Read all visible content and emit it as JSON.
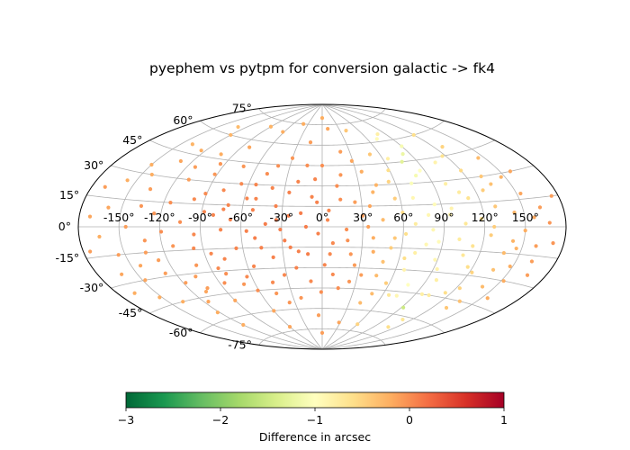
{
  "chart_data": {
    "type": "scatter",
    "projection": "aitoff",
    "title": "pyephem vs pytpm for conversion galactic -> fk4",
    "x_tick_labels": [
      "-150°",
      "-120°",
      "-90°",
      "-60°",
      "-30°",
      "0°",
      "30°",
      "60°",
      "90°",
      "120°",
      "150°"
    ],
    "x_ticks": [
      -150,
      -120,
      -90,
      -60,
      -30,
      0,
      30,
      60,
      90,
      120,
      150
    ],
    "y_tick_labels": [
      "-75°",
      "-60°",
      "-45°",
      "-30°",
      "-15°",
      "0°",
      "15°",
      "30°",
      "45°",
      "60°",
      "75°"
    ],
    "y_ticks": [
      -75,
      -60,
      -45,
      -30,
      -15,
      0,
      15,
      30,
      45,
      60,
      75
    ],
    "xlim": [
      -180,
      180
    ],
    "ylim": [
      -90,
      90
    ],
    "grid": true,
    "colorbar": {
      "label": "Difference in arcsec",
      "colormap": "RdYlGn_r",
      "range": [
        -3,
        1
      ],
      "ticks": [
        -3,
        -2,
        -1,
        0,
        1
      ],
      "tick_labels": [
        "−3",
        "−2",
        "−1",
        "0",
        "1"
      ],
      "stops": [
        "#006837",
        "#1a9850",
        "#66bd63",
        "#a6d96a",
        "#d9ef8b",
        "#ffffbf",
        "#fee08b",
        "#fdae61",
        "#f46d43",
        "#d73027",
        "#a50026"
      ]
    },
    "points": [
      [
        -170,
        20,
        -0.1
      ],
      [
        -165,
        -5,
        -0.2
      ],
      [
        -160,
        10,
        -0.15
      ],
      [
        -155,
        -15,
        -0.1
      ],
      [
        -150,
        35,
        -0.2
      ],
      [
        -148,
        -30,
        -0.15
      ],
      [
        -145,
        0,
        -0.1
      ],
      [
        -140,
        50,
        -0.25
      ],
      [
        -138,
        -45,
        -0.2
      ],
      [
        -135,
        22,
        -0.1
      ],
      [
        -132,
        -8,
        -0.05
      ],
      [
        -130,
        40,
        -0.15
      ],
      [
        -127,
        -20,
        -0.1
      ],
      [
        -125,
        8,
        -0.05
      ],
      [
        -122,
        -55,
        -0.2
      ],
      [
        -120,
        60,
        -0.25
      ],
      [
        -118,
        -35,
        -0.1
      ],
      [
        -115,
        15,
        0.0
      ],
      [
        -112,
        -12,
        -0.05
      ],
      [
        -110,
        30,
        -0.1
      ],
      [
        -108,
        -42,
        -0.15
      ],
      [
        -105,
        3,
        0.0
      ],
      [
        -102,
        48,
        -0.2
      ],
      [
        -100,
        -25,
        -0.05
      ],
      [
        -98,
        18,
        0.02
      ],
      [
        -95,
        -5,
        0.03
      ],
      [
        -92,
        35,
        -0.05
      ],
      [
        -90,
        -50,
        -0.15
      ],
      [
        -88,
        10,
        0.05
      ],
      [
        -85,
        -18,
        0.04
      ],
      [
        -82,
        55,
        -0.15
      ],
      [
        -80,
        -32,
        0.0
      ],
      [
        -78,
        25,
        0.03
      ],
      [
        -75,
        -2,
        0.06
      ],
      [
        -72,
        42,
        -0.05
      ],
      [
        -70,
        -40,
        -0.05
      ],
      [
        -68,
        5,
        0.08
      ],
      [
        -65,
        -15,
        0.06
      ],
      [
        -62,
        68,
        -0.2
      ],
      [
        -60,
        -60,
        -0.15
      ],
      [
        -58,
        20,
        0.05
      ],
      [
        -55,
        -28,
        0.05
      ],
      [
        -52,
        12,
        0.08
      ],
      [
        -50,
        -8,
        0.09
      ],
      [
        -48,
        38,
        0.0
      ],
      [
        -45,
        -48,
        -0.05
      ],
      [
        -42,
        2,
        0.1
      ],
      [
        -40,
        28,
        0.05
      ],
      [
        -38,
        -22,
        0.07
      ],
      [
        -35,
        15,
        0.08
      ],
      [
        -32,
        -35,
        0.04
      ],
      [
        -30,
        50,
        -0.05
      ],
      [
        -28,
        -10,
        0.1
      ],
      [
        -25,
        8,
        0.1
      ],
      [
        -22,
        -52,
        -0.05
      ],
      [
        -20,
        33,
        0.05
      ],
      [
        -18,
        -18,
        0.08
      ],
      [
        -15,
        62,
        -0.1
      ],
      [
        -12,
        0,
        0.1
      ],
      [
        -10,
        -40,
        0.02
      ],
      [
        -8,
        22,
        0.06
      ],
      [
        -5,
        -65,
        -0.1
      ],
      [
        -3,
        -5,
        0.08
      ],
      [
        0,
        45,
        0.0
      ],
      [
        2,
        -28,
        0.05
      ],
      [
        5,
        12,
        0.04
      ],
      [
        8,
        -12,
        0.03
      ],
      [
        10,
        72,
        -0.15
      ],
      [
        12,
        30,
        0.0
      ],
      [
        15,
        -45,
        0.0
      ],
      [
        18,
        -2,
        0.0
      ],
      [
        20,
        55,
        -0.1
      ],
      [
        22,
        -20,
        -0.05
      ],
      [
        25,
        18,
        -0.1
      ],
      [
        28,
        -70,
        -0.15
      ],
      [
        30,
        8,
        -0.1
      ],
      [
        33,
        -35,
        -0.1
      ],
      [
        35,
        40,
        -0.2
      ],
      [
        38,
        -8,
        -0.2
      ],
      [
        40,
        25,
        -0.25
      ],
      [
        42,
        -55,
        -0.3
      ],
      [
        45,
        5,
        -0.3
      ],
      [
        48,
        -25,
        -0.35
      ],
      [
        50,
        52,
        -0.4
      ],
      [
        52,
        -15,
        -0.45
      ],
      [
        55,
        32,
        -0.5
      ],
      [
        57,
        -40,
        -0.45
      ],
      [
        60,
        10,
        -0.55
      ],
      [
        62,
        -5,
        -0.6
      ],
      [
        65,
        48,
        -0.8
      ],
      [
        67,
        -30,
        -0.85
      ],
      [
        70,
        20,
        -0.9
      ],
      [
        72,
        62,
        -0.95
      ],
      [
        74,
        -48,
        -0.9
      ],
      [
        76,
        45,
        -1.3
      ],
      [
        78,
        -12,
        -0.9
      ],
      [
        80,
        35,
        -1.1
      ],
      [
        82,
        -2,
        -0.9
      ],
      [
        85,
        15,
        -0.95
      ],
      [
        88,
        -22,
        -0.9
      ],
      [
        90,
        55,
        -1.1
      ],
      [
        92,
        -55,
        -1.5
      ],
      [
        95,
        8,
        -0.85
      ],
      [
        98,
        -35,
        -0.8
      ],
      [
        100,
        28,
        -0.8
      ],
      [
        102,
        -8,
        -0.75
      ],
      [
        105,
        42,
        -0.85
      ],
      [
        108,
        -18,
        -0.7
      ],
      [
        110,
        -62,
        -0.7
      ],
      [
        112,
        18,
        -0.65
      ],
      [
        115,
        -42,
        -0.6
      ],
      [
        118,
        5,
        -0.6
      ],
      [
        120,
        35,
        -0.55
      ],
      [
        122,
        -28,
        -0.5
      ],
      [
        125,
        -5,
        -0.45
      ],
      [
        128,
        50,
        -0.5
      ],
      [
        130,
        12,
        -0.4
      ],
      [
        133,
        -50,
        -0.4
      ],
      [
        135,
        25,
        -0.35
      ],
      [
        138,
        -15,
        -0.3
      ],
      [
        140,
        -35,
        -0.3
      ],
      [
        143,
        8,
        -0.25
      ],
      [
        145,
        40,
        -0.3
      ],
      [
        148,
        -22,
        -0.2
      ],
      [
        150,
        -2,
        -0.2
      ],
      [
        153,
        18,
        -0.15
      ],
      [
        155,
        -40,
        -0.2
      ],
      [
        158,
        30,
        -0.15
      ],
      [
        160,
        -10,
        -0.1
      ],
      [
        163,
        10,
        -0.1
      ],
      [
        166,
        -25,
        -0.1
      ],
      [
        168,
        2,
        -0.05
      ],
      [
        172,
        -8,
        -0.05
      ],
      [
        175,
        15,
        -0.1
      ],
      [
        -175,
        -12,
        -0.1
      ],
      [
        -172,
        5,
        -0.15
      ],
      [
        -162,
        -25,
        -0.15
      ],
      [
        -157,
        25,
        -0.2
      ],
      [
        -143,
        -22,
        -0.15
      ],
      [
        -136,
        12,
        -0.05
      ],
      [
        -128,
        -28,
        -0.1
      ],
      [
        -119,
        -3,
        0.0
      ],
      [
        -113,
        38,
        -0.1
      ],
      [
        -106,
        -32,
        -0.1
      ],
      [
        -97,
        -14,
        0.03
      ],
      [
        -91,
        22,
        0.02
      ],
      [
        -86,
        -38,
        0.0
      ],
      [
        -81,
        8,
        0.06
      ],
      [
        -76,
        -22,
        0.05
      ],
      [
        -71,
        15,
        0.05
      ],
      [
        -66,
        30,
        0.03
      ],
      [
        -61,
        -45,
        0.0
      ],
      [
        -56,
        -3,
        0.08
      ],
      [
        -51,
        20,
        0.06
      ],
      [
        -46,
        -15,
        0.08
      ],
      [
        -41,
        44,
        0.0
      ],
      [
        -36,
        -55,
        -0.05
      ],
      [
        -31,
        -2,
        0.1
      ],
      [
        -26,
        25,
        0.08
      ],
      [
        -21,
        -30,
        0.07
      ],
      [
        -16,
        10,
        0.1
      ],
      [
        -11,
        -20,
        0.09
      ],
      [
        -6,
        35,
        0.05
      ],
      [
        -1,
        -48,
        0.0
      ],
      [
        4,
        5,
        0.05
      ],
      [
        9,
        -35,
        0.03
      ],
      [
        14,
        20,
        0.0
      ],
      [
        19,
        -10,
        -0.02
      ],
      [
        24,
        -40,
        -0.05
      ],
      [
        29,
        48,
        -0.15
      ],
      [
        34,
        0,
        -0.12
      ],
      [
        39,
        -18,
        -0.2
      ],
      [
        44,
        30,
        -0.25
      ],
      [
        49,
        -48,
        -0.3
      ],
      [
        54,
        -8,
        -0.4
      ],
      [
        59,
        40,
        -0.6
      ],
      [
        64,
        -22,
        -0.6
      ],
      [
        69,
        2,
        -0.75
      ],
      [
        73,
        30,
        -1.05
      ],
      [
        77,
        -40,
        -1.0
      ],
      [
        83,
        50,
        -1.2
      ],
      [
        87,
        -10,
        -0.95
      ],
      [
        93,
        -28,
        -0.85
      ],
      [
        97,
        12,
        -0.85
      ],
      [
        103,
        -45,
        -0.75
      ],
      [
        107,
        22,
        -0.75
      ],
      [
        113,
        -12,
        -0.65
      ],
      [
        117,
        45,
        -0.65
      ],
      [
        123,
        -38,
        -0.5
      ],
      [
        127,
        0,
        -0.45
      ],
      [
        132,
        30,
        -0.4
      ],
      [
        137,
        -25,
        -0.35
      ],
      [
        142,
        -8,
        -0.25
      ],
      [
        147,
        28,
        -0.25
      ],
      [
        152,
        -30,
        -0.2
      ],
      [
        157,
        5,
        -0.15
      ],
      [
        162,
        -18,
        -0.1
      ],
      [
        -167,
        -35,
        -0.2
      ],
      [
        -152,
        -40,
        -0.2
      ],
      [
        -142,
        30,
        -0.2
      ],
      [
        -134,
        -15,
        -0.1
      ],
      [
        -124,
        48,
        -0.2
      ],
      [
        -116,
        -48,
        -0.15
      ],
      [
        -104,
        -40,
        -0.1
      ],
      [
        -94,
        42,
        -0.05
      ],
      [
        -84,
        -28,
        0.02
      ],
      [
        -74,
        12,
        0.06
      ],
      [
        -64,
        -35,
        0.02
      ],
      [
        -54,
        30,
        0.05
      ],
      [
        -44,
        -40,
        0.02
      ],
      [
        -34,
        5,
        0.1
      ],
      [
        -24,
        -15,
        0.09
      ],
      [
        -14,
        45,
        0.0
      ],
      [
        -4,
        18,
        0.07
      ],
      [
        6,
        -20,
        0.03
      ],
      [
        16,
        38,
        -0.05
      ],
      [
        26,
        -28,
        -0.08
      ],
      [
        36,
        15,
        -0.15
      ],
      [
        46,
        -35,
        -0.3
      ],
      [
        56,
        20,
        -0.45
      ],
      [
        66,
        -48,
        -0.7
      ],
      [
        71,
        -18,
        -0.8
      ],
      [
        79,
        8,
        -0.9
      ],
      [
        86,
        38,
        -1.0
      ],
      [
        96,
        -45,
        -0.8
      ],
      [
        106,
        2,
        -0.7
      ],
      [
        116,
        -25,
        -0.6
      ],
      [
        126,
        22,
        -0.45
      ],
      [
        136,
        -45,
        -0.35
      ],
      [
        146,
        -12,
        -0.25
      ],
      [
        -130,
        65,
        -0.3
      ],
      [
        -90,
        70,
        -0.25
      ],
      [
        -40,
        75,
        -0.2
      ],
      [
        0,
        80,
        -0.2
      ],
      [
        40,
        70,
        -0.4
      ],
      [
        80,
        65,
        -0.8
      ],
      [
        120,
        60,
        -0.6
      ],
      [
        -120,
        -65,
        -0.2
      ],
      [
        -60,
        -72,
        -0.15
      ],
      [
        0,
        -78,
        -0.1
      ],
      [
        60,
        -70,
        -0.5
      ],
      [
        110,
        -68,
        -0.6
      ]
    ]
  }
}
